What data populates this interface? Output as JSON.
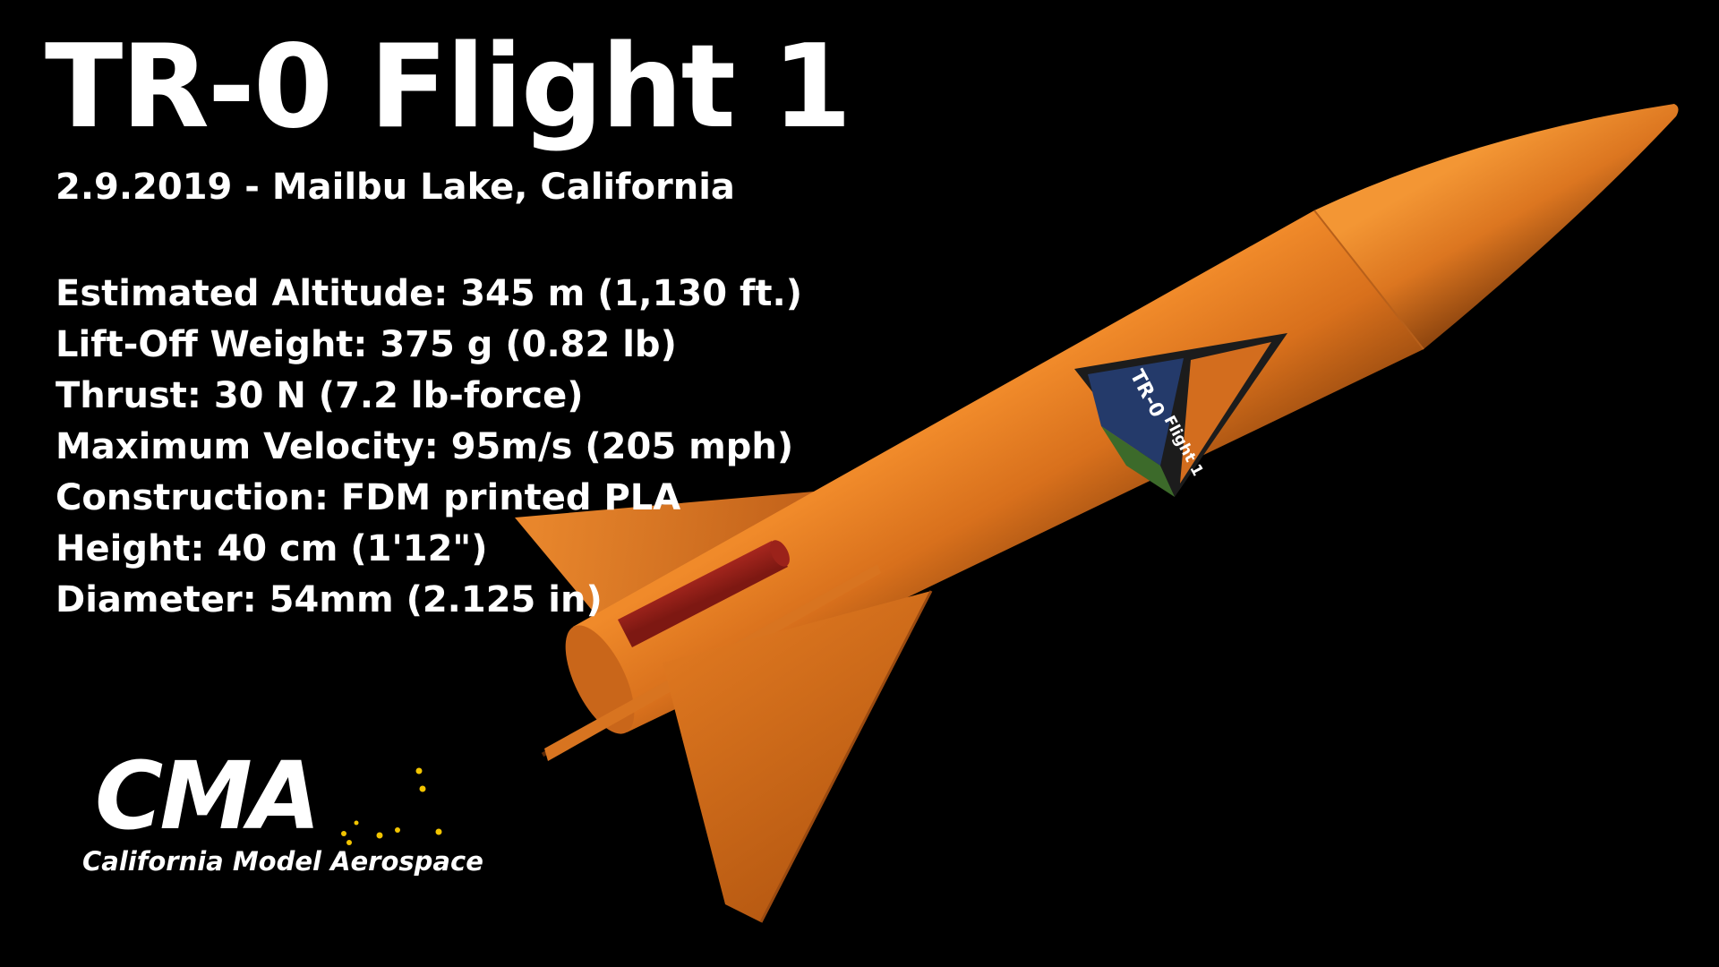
{
  "title": "TR-0 Flight 1",
  "subtitle": "2.9.2019 - Mailbu Lake, California",
  "specs": [
    "Estimated Altitude: 345 m (1,130 ft.)",
    "Lift-Off Weight: 375 g (0.82 lb)",
    "Thrust: 30 N (7.2 lb-force)",
    "Maximum Velocity: 95m/s (205 mph)",
    "Construction: FDM printed PLA",
    "Height: 40 cm (1'12\")",
    "Diameter: 54mm (2.125 in)"
  ],
  "logo": {
    "mark": "CMA",
    "tagline": "California Model Aerospace"
  },
  "decal": {
    "name": "TR-0",
    "label": "Flight 1"
  },
  "colors": {
    "background": "#000000",
    "text": "#ffffff",
    "rocket_body": "#d9731c",
    "rocket_shadow": "#7a3a0a",
    "launch_lug": "#a8231c",
    "logo_stars": "#f2c400"
  }
}
